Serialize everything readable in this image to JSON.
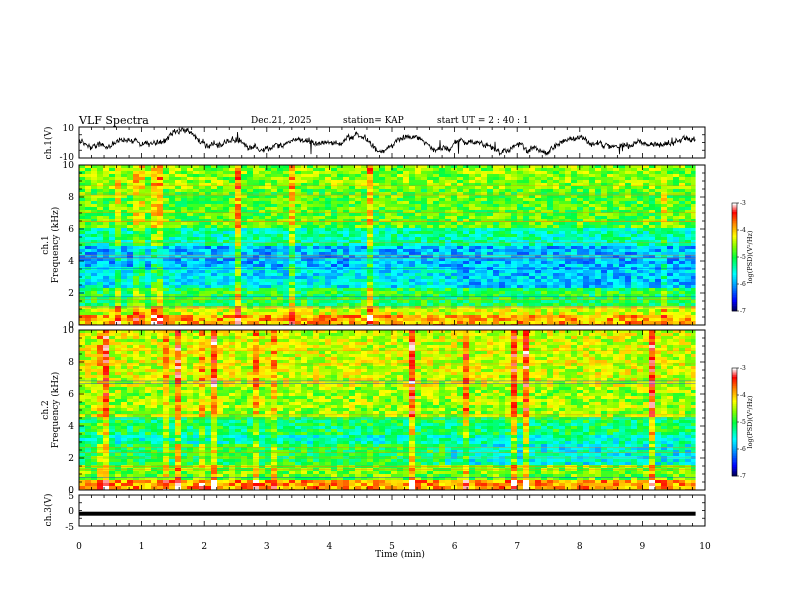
{
  "header": {
    "title": "VLF Spectra",
    "date": "Dec.21, 2025",
    "station": "station= KAP",
    "start_ut": "start  UT =   2 : 40 : 1"
  },
  "chart_data": [
    {
      "type": "line",
      "panel": "ch1-waveform",
      "ylabel": "ch.1(V)",
      "ylim": [
        -10,
        10
      ],
      "ytick_labels": [
        "10",
        "-10"
      ],
      "xlim": [
        0,
        10
      ],
      "data_span_min": [
        0,
        9.85
      ],
      "description_of_series": "noisy voltage trace fluctuating roughly between -6 and 6 V"
    },
    {
      "type": "heatmap",
      "panel": "ch1-spectrogram",
      "ylabel": "ch.1",
      "ylabel2": "Frequency (kHz)",
      "ylim": [
        0,
        10
      ],
      "ytick_labels": [
        "0",
        "2",
        "4",
        "6",
        "8",
        "10"
      ],
      "xlim": [
        0,
        10
      ],
      "colorbar": {
        "range": [
          -7,
          -3
        ],
        "tick_labels": [
          "-3",
          "-4",
          "-5",
          "-6",
          "-7"
        ],
        "label": "log(PSD)(V²/Hz)",
        "colors": [
          "#000040",
          "#0000ff",
          "#00a0ff",
          "#00ffff",
          "#00ff40",
          "#80ff00",
          "#ffff00",
          "#ff8000",
          "#ff0000",
          "#ffffff"
        ]
      }
    },
    {
      "type": "heatmap",
      "panel": "ch2-spectrogram",
      "ylabel": "ch.2",
      "ylabel2": "Frequency (kHz)",
      "ylim": [
        0,
        10
      ],
      "ytick_labels": [
        "0",
        "2",
        "4",
        "6",
        "8",
        "10"
      ],
      "xlim": [
        0,
        10
      ],
      "colorbar": {
        "range": [
          -7,
          -3
        ],
        "tick_labels": [
          "-3",
          "-4",
          "-5",
          "-6",
          "-7"
        ],
        "label": "log(PSD)(V²/Hz)"
      }
    },
    {
      "type": "line",
      "panel": "ch3-waveform",
      "ylabel": "ch.3(V)",
      "ylim": [
        -5,
        5
      ],
      "ytick_labels": [
        "5",
        "0",
        "-5"
      ],
      "xlim": [
        0,
        10
      ],
      "series_level_v": [
        -1.7,
        -0.4
      ],
      "xlabel": "Time (min)",
      "xtick_labels": [
        "0",
        "1",
        "2",
        "3",
        "4",
        "5",
        "6",
        "7",
        "8",
        "9",
        "10"
      ]
    }
  ]
}
